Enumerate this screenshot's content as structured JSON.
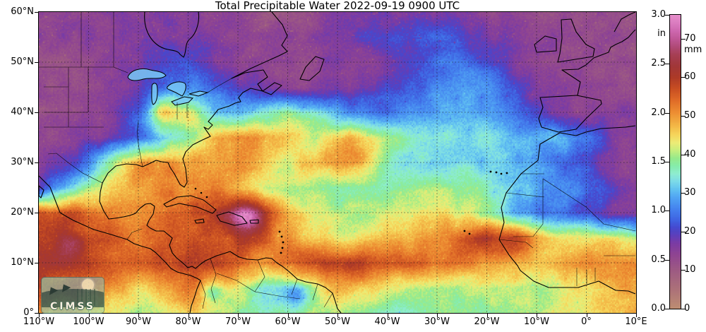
{
  "title": "Total Precipitable Water  2022-09-19 0900 UTC",
  "logo": {
    "text": "CIMSS"
  },
  "axes": {
    "lat_ticks": [
      {
        "label": "60°N",
        "lat": 60
      },
      {
        "label": "50°N",
        "lat": 50
      },
      {
        "label": "40°N",
        "lat": 40
      },
      {
        "label": "30°N",
        "lat": 30
      },
      {
        "label": "20°N",
        "lat": 20
      },
      {
        "label": "10°N",
        "lat": 10
      },
      {
        "label": "0°",
        "lat": 0
      }
    ],
    "lon_ticks": [
      {
        "label": "110°W",
        "lon": -110
      },
      {
        "label": "100°W",
        "lon": -100
      },
      {
        "label": "90°W",
        "lon": -90
      },
      {
        "label": "80°W",
        "lon": -80
      },
      {
        "label": "70°W",
        "lon": -70
      },
      {
        "label": "60°W",
        "lon": -60
      },
      {
        "label": "50°W",
        "lon": -50
      },
      {
        "label": "40°W",
        "lon": -40
      },
      {
        "label": "30°W",
        "lon": -30
      },
      {
        "label": "20°W",
        "lon": -20
      },
      {
        "label": "10°W",
        "lon": -10
      },
      {
        "label": "0°",
        "lon": 0
      },
      {
        "label": "10°E",
        "lon": 10
      }
    ],
    "graticule_step_deg": 10
  },
  "colorbar": {
    "unit_in": "in",
    "unit_mm": "mm",
    "max_in": 3.0,
    "max_mm": 76.2,
    "in_ticks": [
      3.0,
      2.5,
      2.0,
      1.5,
      1.0,
      0.5,
      0.0
    ],
    "mm_ticks": [
      70,
      60,
      50,
      40,
      30,
      20,
      10,
      0
    ],
    "stops": [
      [
        0,
        "#bd8d72"
      ],
      [
        5,
        "#ac7179"
      ],
      [
        10,
        "#9d5a83"
      ],
      [
        14,
        "#8f4492"
      ],
      [
        17,
        "#7a3ba5"
      ],
      [
        19,
        "#5d3fbb"
      ],
      [
        21,
        "#4549cf"
      ],
      [
        23,
        "#3f64e2"
      ],
      [
        26,
        "#4584ef"
      ],
      [
        29,
        "#52a7f3"
      ],
      [
        31,
        "#63c3f0"
      ],
      [
        33,
        "#7cdbe9"
      ],
      [
        35,
        "#8fedd0"
      ],
      [
        37,
        "#86ecab"
      ],
      [
        39,
        "#96ea8b"
      ],
      [
        41,
        "#c6ee7e"
      ],
      [
        43,
        "#ecec76"
      ],
      [
        45,
        "#f6d75c"
      ],
      [
        47,
        "#f4bd4a"
      ],
      [
        49,
        "#f0a53d"
      ],
      [
        51,
        "#ed8d32"
      ],
      [
        54,
        "#e06c28"
      ],
      [
        57,
        "#c94f22"
      ],
      [
        60,
        "#ad3a27"
      ],
      [
        63,
        "#a13739"
      ],
      [
        66,
        "#a63f55"
      ],
      [
        68,
        "#b04a77"
      ],
      [
        70,
        "#bf5796"
      ],
      [
        72,
        "#cd67ae"
      ],
      [
        74,
        "#da7bbf"
      ],
      [
        76.2,
        "#e78fcb"
      ]
    ]
  },
  "map_field": {
    "units": "mm",
    "lon_min": -110,
    "lon_max": 10,
    "lat_max": 60,
    "lat_min": 0,
    "grid_step_deg": 5,
    "lats": [
      60,
      55,
      50,
      45,
      40,
      35,
      30,
      25,
      20,
      15,
      10,
      5,
      0
    ],
    "values": [
      [
        13,
        13,
        14,
        14,
        15,
        16,
        15,
        14,
        13,
        12,
        12,
        13,
        14,
        15,
        16,
        17,
        17,
        15,
        14,
        13,
        12,
        12,
        13,
        13,
        12
      ],
      [
        14,
        14,
        15,
        15,
        16,
        17,
        16,
        15,
        14,
        13,
        13,
        15,
        17,
        19,
        21,
        23,
        23,
        21,
        18,
        15,
        14,
        13,
        13,
        12,
        12
      ],
      [
        12,
        12,
        13,
        14,
        16,
        20,
        22,
        18,
        14,
        13,
        13,
        14,
        15,
        16,
        19,
        23,
        26,
        25,
        22,
        17,
        14,
        13,
        13,
        13,
        12
      ],
      [
        12,
        12,
        13,
        15,
        19,
        24,
        26,
        24,
        20,
        16,
        14,
        15,
        16,
        18,
        21,
        25,
        28,
        30,
        27,
        21,
        15,
        13,
        13,
        12,
        12
      ],
      [
        12,
        12,
        13,
        16,
        22,
        38,
        44,
        32,
        30,
        35,
        38,
        35,
        29,
        26,
        25,
        27,
        29,
        30,
        29,
        26,
        20,
        15,
        14,
        15,
        16
      ],
      [
        14,
        14,
        16,
        19,
        24,
        31,
        39,
        46,
        52,
        49,
        45,
        42,
        46,
        44,
        38,
        35,
        34,
        33,
        33,
        31,
        30,
        30,
        26,
        16,
        14
      ],
      [
        16,
        18,
        26,
        40,
        50,
        52,
        50,
        48,
        50,
        46,
        42,
        48,
        46,
        40,
        36,
        34,
        33,
        33,
        32,
        30,
        27,
        24,
        21,
        18,
        16
      ],
      [
        20,
        30,
        40,
        46,
        50,
        52,
        50,
        52,
        48,
        42,
        40,
        38,
        37,
        36,
        37,
        38,
        40,
        38,
        36,
        33,
        29,
        26,
        25,
        23,
        19
      ],
      [
        55,
        57,
        54,
        52,
        52,
        54,
        56,
        61,
        66,
        57,
        48,
        42,
        40,
        40,
        42,
        44,
        45,
        43,
        38,
        30,
        26,
        24,
        21,
        17,
        15
      ],
      [
        60,
        62,
        58,
        55,
        52,
        55,
        56,
        55,
        58,
        54,
        50,
        46,
        44,
        44,
        46,
        48,
        50,
        55,
        61,
        52,
        48,
        45,
        45,
        44,
        40
      ],
      [
        62,
        60,
        58,
        55,
        56,
        58,
        60,
        58,
        55,
        52,
        55,
        58,
        60,
        58,
        56,
        55,
        54,
        52,
        50,
        48,
        46,
        48,
        50,
        52,
        49
      ],
      [
        58,
        56,
        54,
        50,
        45,
        48,
        52,
        48,
        42,
        34,
        36,
        42,
        48,
        46,
        42,
        40,
        40,
        40,
        42,
        42,
        40,
        42,
        45,
        48,
        49
      ],
      [
        50,
        48,
        45,
        42,
        40,
        42,
        45,
        42,
        38,
        36,
        38,
        40,
        40,
        38,
        36,
        36,
        38,
        38,
        38,
        40,
        40,
        42,
        44,
        46,
        48
      ]
    ],
    "hotspots": [
      {
        "lon": -67.5,
        "lat": 18.8,
        "amp": 14,
        "r": 2.2
      },
      {
        "lon": -47.0,
        "lat": 31.0,
        "amp": 9,
        "r": 2.8
      },
      {
        "lon": -85.0,
        "lat": 40.0,
        "amp": 9,
        "r": 2.2
      },
      {
        "lon": -14.5,
        "lat": 14.5,
        "amp": 9,
        "r": 2.2
      },
      {
        "lon": -35.0,
        "lat": 49.0,
        "amp": -4,
        "r": 5.0
      },
      {
        "lon": -103.0,
        "lat": 13.0,
        "amp": 6,
        "r": 1.6
      },
      {
        "lon": -58.5,
        "lat": 3.5,
        "amp": -12,
        "r": 1.8
      },
      {
        "lon": -75.0,
        "lat": 4.0,
        "amp": -10,
        "r": 1.5
      },
      {
        "lon": 6.0,
        "lat": 27.0,
        "amp": -6,
        "r": 3.0
      }
    ]
  }
}
